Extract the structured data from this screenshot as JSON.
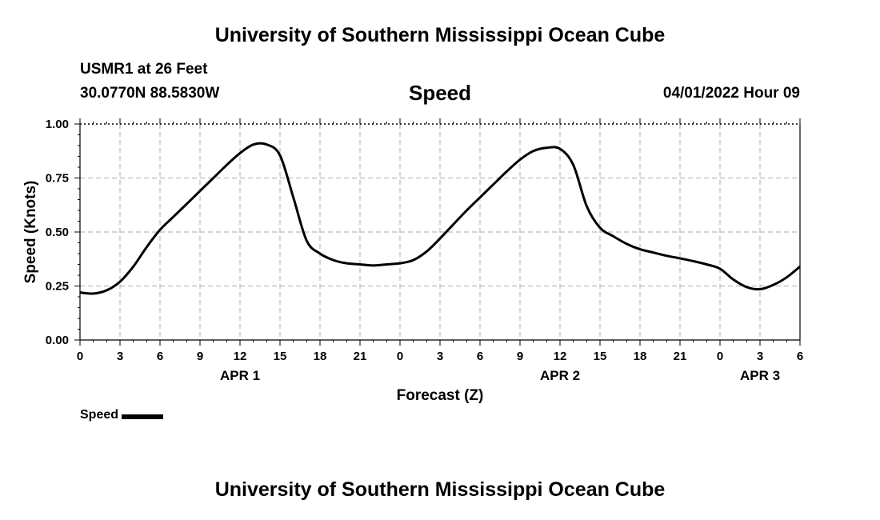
{
  "header": {
    "title": "University of Southern Mississippi Ocean Cube",
    "station": "USMR1 at 26 Feet",
    "coords": "30.0770N  88.5830W",
    "datetime": "04/01/2022 Hour 09",
    "footer_title": "University of Southern Mississippi Ocean Cube"
  },
  "chart_data": {
    "type": "line",
    "title": "Speed",
    "xlabel": "Forecast (Z)",
    "ylabel": "Speed (Knots)",
    "xlim": [
      0,
      54
    ],
    "ylim": [
      0,
      1
    ],
    "x_tick_values": [
      0,
      3,
      6,
      9,
      12,
      15,
      18,
      21,
      24,
      27,
      30,
      33,
      36,
      39,
      42,
      45,
      48,
      51,
      54
    ],
    "x_tick_labels": [
      "0",
      "3",
      "6",
      "9",
      "12",
      "15",
      "18",
      "21",
      "0",
      "3",
      "6",
      "9",
      "12",
      "15",
      "18",
      "21",
      "0",
      "3",
      "6"
    ],
    "y_tick_values": [
      0,
      0.25,
      0.5,
      0.75,
      1.0
    ],
    "y_tick_labels": [
      "0.00",
      "0.25",
      "0.50",
      "0.75",
      "1.00"
    ],
    "day_labels": [
      {
        "label": "APR 1",
        "x": 12
      },
      {
        "label": "APR 2",
        "x": 36
      },
      {
        "label": "APR 3",
        "x": 51
      }
    ],
    "grid": true,
    "legend_position": "bottom-left",
    "series": [
      {
        "name": "Speed",
        "color": "#000000",
        "x": [
          0,
          1,
          2,
          3,
          4,
          5,
          6,
          7,
          8,
          9,
          10,
          11,
          12,
          13,
          14,
          15,
          16,
          17,
          18,
          19,
          20,
          21,
          22,
          23,
          24,
          25,
          26,
          27,
          28,
          29,
          30,
          31,
          32,
          33,
          34,
          35,
          36,
          37,
          38,
          39,
          40,
          41,
          42,
          43,
          44,
          45,
          46,
          47,
          48,
          49,
          50,
          51,
          52,
          53,
          54
        ],
        "y": [
          0.22,
          0.215,
          0.23,
          0.27,
          0.34,
          0.43,
          0.51,
          0.57,
          0.63,
          0.69,
          0.75,
          0.81,
          0.865,
          0.905,
          0.905,
          0.855,
          0.66,
          0.46,
          0.4,
          0.37,
          0.355,
          0.35,
          0.345,
          0.35,
          0.355,
          0.37,
          0.41,
          0.47,
          0.535,
          0.6,
          0.66,
          0.72,
          0.78,
          0.835,
          0.875,
          0.89,
          0.885,
          0.81,
          0.62,
          0.52,
          0.48,
          0.445,
          0.42,
          0.405,
          0.39,
          0.378,
          0.365,
          0.35,
          0.33,
          0.28,
          0.245,
          0.235,
          0.255,
          0.29,
          0.34
        ]
      }
    ]
  }
}
